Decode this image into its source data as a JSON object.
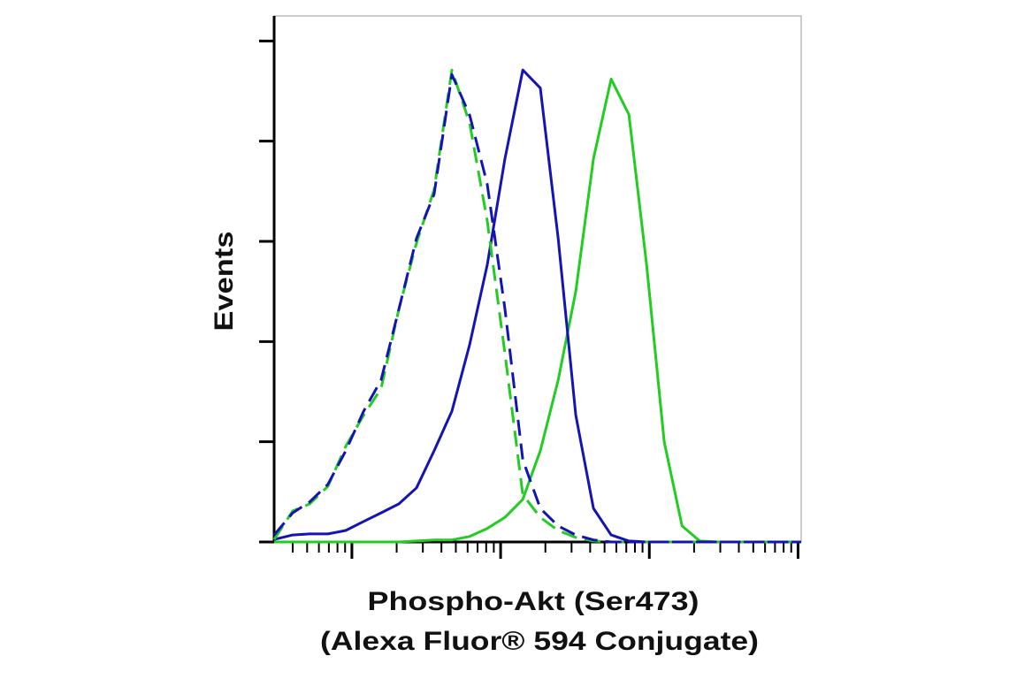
{
  "chart_data": {
    "type": "line",
    "ylabel": "Events",
    "xlabel": [
      "Phospho-Akt (Ser473)",
      "(Alexa Fluor® 594 Conjugate)"
    ],
    "xscale": "log",
    "xlim": [
      30,
      105000
    ],
    "ylim": [
      0,
      105
    ],
    "yticks": [
      0,
      20,
      40,
      60,
      80,
      100
    ],
    "xticks": [
      40,
      50,
      60,
      70,
      80,
      90,
      100,
      200,
      300,
      400,
      500,
      600,
      700,
      800,
      900,
      1000,
      2000,
      3000,
      4000,
      5000,
      6000,
      7000,
      8000,
      9000,
      10000,
      20000,
      30000,
      40000,
      50000,
      60000,
      70000,
      80000,
      90000,
      100000
    ],
    "x": [
      30,
      40,
      52,
      69,
      91,
      120,
      157,
      207,
      272,
      357,
      470,
      619,
      813,
      1070,
      1410,
      1850,
      2440,
      3200,
      4210,
      5540,
      7290,
      9590,
      12600,
      16600,
      21800,
      28700,
      37700,
      49600,
      65300,
      85800,
      105000
    ],
    "series": [
      {
        "color": "#22cc22",
        "dashed": false,
        "values": [
          0,
          0,
          0,
          0,
          0,
          0,
          0,
          0,
          0.2,
          0.4,
          0.4,
          1.1,
          2.7,
          4.9,
          8.5,
          18.2,
          32.3,
          50,
          76.5,
          92.4,
          85.3,
          55.3,
          20,
          3.2,
          0.2,
          0,
          0,
          0,
          0,
          0,
          0
        ]
      },
      {
        "color": "#1414b4",
        "dashed": false,
        "values": [
          0.5,
          1.4,
          1.6,
          1.6,
          2.3,
          4.1,
          5.8,
          7.6,
          10.8,
          18.2,
          26.1,
          39.4,
          55.3,
          76.5,
          94.2,
          90.6,
          60.6,
          25.3,
          6.7,
          1.4,
          0.2,
          0,
          0,
          0,
          0,
          0,
          0,
          0,
          0,
          0,
          0
        ]
      },
      {
        "color": "#22cc22",
        "dashed": true,
        "values": [
          0.5,
          6.2,
          7.6,
          11.1,
          19.1,
          25.3,
          30.6,
          46.5,
          59.7,
          70.3,
          94.2,
          83.6,
          64.1,
          37.6,
          9.4,
          4.9,
          2.3,
          0.9,
          0.2,
          0,
          0,
          0,
          0,
          0,
          0,
          0,
          0,
          0,
          0,
          0,
          0
        ]
      },
      {
        "color": "#1414b4",
        "dashed": true,
        "values": [
          1.4,
          5.8,
          8.0,
          11.5,
          18.2,
          26.1,
          32.3,
          46.5,
          60.6,
          69.4,
          93.3,
          85.2,
          71.4,
          46.5,
          16.4,
          6.7,
          3.2,
          1.4,
          0.4,
          0,
          0,
          0,
          0,
          0,
          0,
          0,
          0,
          0,
          0,
          0,
          0
        ]
      }
    ]
  }
}
